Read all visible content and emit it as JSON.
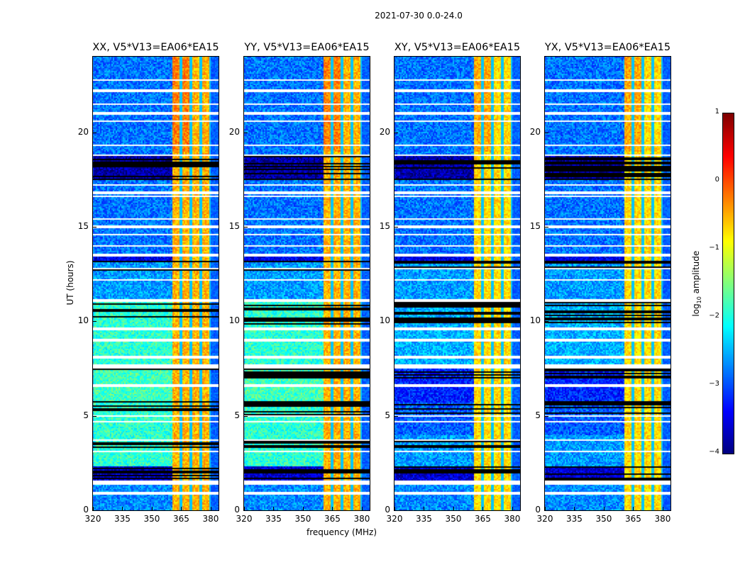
{
  "chart_data": {
    "type": "heatmap",
    "suptitle": "2021-07-30 0.0-24.0",
    "panels": [
      {
        "title": "XX, V5*V13=EA06*EA15",
        "pol": "parallel"
      },
      {
        "title": "YY, V5*V13=EA06*EA15",
        "pol": "parallel"
      },
      {
        "title": "XY, V5*V13=EA06*EA15",
        "pol": "cross"
      },
      {
        "title": "YX, V5*V13=EA06*EA15",
        "pol": "cross"
      }
    ],
    "xlabel": "frequency (MHz)",
    "ylabel": "UT (hours)",
    "xlim": [
      320,
      384
    ],
    "ylim": [
      0,
      24
    ],
    "xticks": [
      "320",
      "335",
      "350",
      "365",
      "380"
    ],
    "xtick_values": [
      320,
      335,
      350,
      365,
      380
    ],
    "yticks": [
      "0",
      "5",
      "10",
      "15",
      "20"
    ],
    "ytick_values": [
      0,
      5,
      10,
      15,
      20
    ],
    "colorbar": {
      "label": "log10 amplitude",
      "label_main": "log",
      "label_sub": "10",
      "label_tail": " amplitude",
      "range": [
        -4,
        1
      ],
      "ticks": [
        "1",
        "0",
        "−1",
        "−2",
        "−3",
        "−4"
      ],
      "tick_values": [
        1,
        0,
        -1,
        -2,
        -3,
        -4
      ],
      "colormap": "jet"
    },
    "rfi_band_mhz": [
      360.5,
      380
    ],
    "rfi_gaps_mhz": [
      365,
      370,
      375,
      380
    ],
    "rfi_level": -0.5,
    "segments": [
      {
        "hours": [
          0,
          1.35
        ],
        "parallel": -2.7,
        "cross": -2.7
      },
      {
        "hours": [
          1.35,
          1.6
        ],
        "flagged": true
      },
      {
        "hours": [
          1.6,
          2.3
        ],
        "parallel": -3.6,
        "cross": -3.6
      },
      {
        "hours": [
          2.3,
          4.0
        ],
        "parallel": -1.9,
        "cross": -2.6
      },
      {
        "hours": [
          4.0,
          5.7
        ],
        "parallel": -1.9,
        "cross": -2.9
      },
      {
        "hours": [
          5.7,
          7.5
        ],
        "parallel": -1.8,
        "cross": -3.2
      },
      {
        "hours": [
          7.5,
          7.7
        ],
        "flagged": true
      },
      {
        "hours": [
          7.7,
          11.0
        ],
        "parallel": -1.9,
        "cross": -2.5
      },
      {
        "hours": [
          11.0,
          11.15
        ],
        "flagged": true
      },
      {
        "hours": [
          11.15,
          13.2
        ],
        "parallel": -2.6,
        "cross": -2.6
      },
      {
        "hours": [
          13.2,
          13.6
        ],
        "parallel": -3.5,
        "cross": -3.5
      },
      {
        "hours": [
          13.6,
          17.5
        ],
        "parallel": -2.8,
        "cross": -2.8
      },
      {
        "hours": [
          17.5,
          18.8
        ],
        "parallel": -3.8,
        "cross": -3.8
      },
      {
        "hours": [
          18.8,
          24
        ],
        "parallel": -2.8,
        "cross": -2.8
      }
    ],
    "flagged_rows_hours": [
      22.75,
      22.2,
      21.5,
      21.0,
      20.6,
      19.3,
      18.8,
      17.2,
      16.8,
      16.6,
      15.4,
      15.0,
      14.6,
      14.0,
      13.5,
      12.8,
      12.2,
      11.05,
      9.6,
      9.0,
      8.1,
      7.6,
      6.6,
      5.0,
      4.7,
      3.7,
      3.1,
      1.5,
      1.45,
      0.9
    ],
    "black_rows_hours": [
      [
        1.6,
        2.3
      ],
      [
        3.3,
        3.7
      ],
      [
        5.0,
        5.8
      ],
      [
        7.0,
        7.5
      ],
      [
        9.8,
        11.0
      ],
      [
        12.7,
        13.2
      ],
      [
        17.5,
        18.8
      ]
    ]
  }
}
